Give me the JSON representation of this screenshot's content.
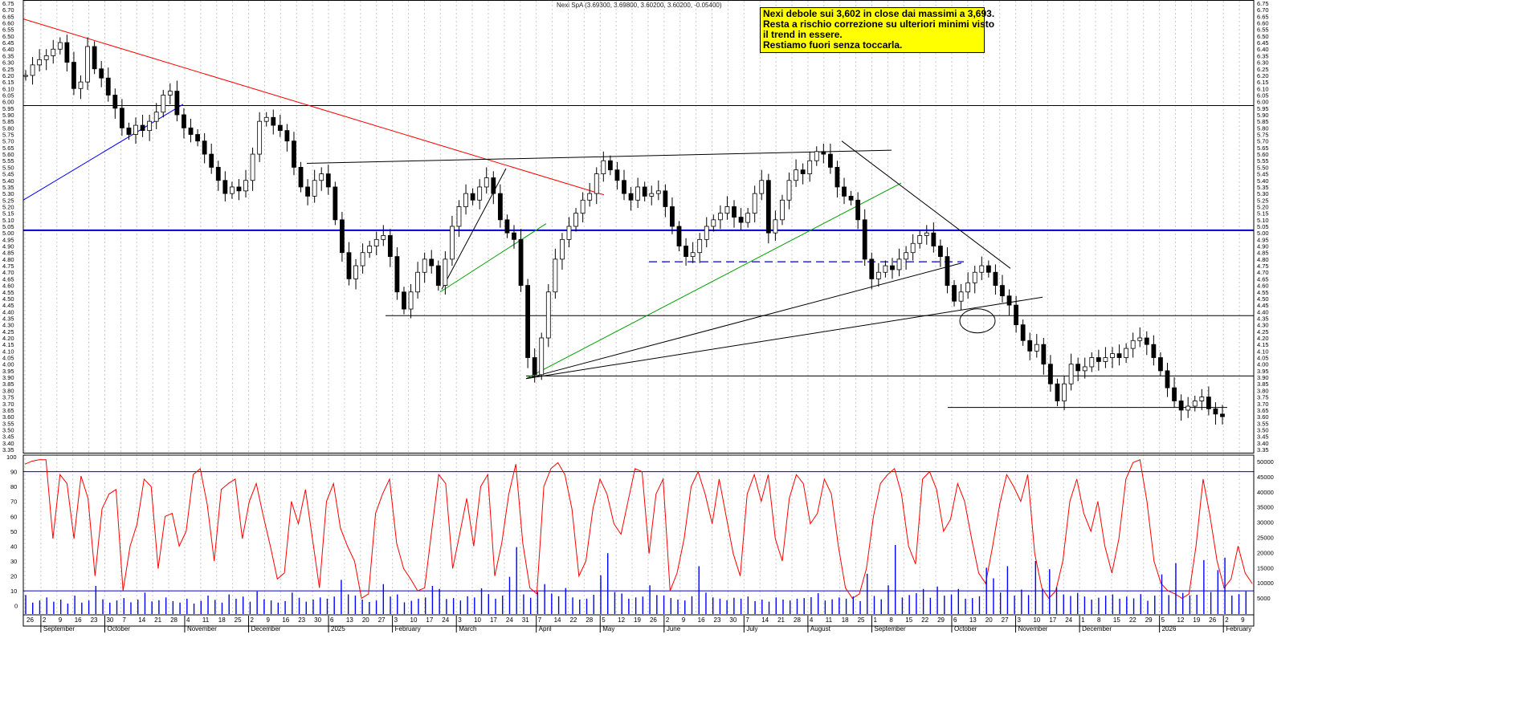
{
  "header": {
    "symbol": "Nexi SpA",
    "ohlc": "(3.69300, 3.69800, 3.60200, 3.60200, -0.05400)"
  },
  "annotation": {
    "lines": [
      "Nexi debole sui 3,602 in close dai massimi a 3,693.",
      "Resta a rischio correzione su ulteriori minimi visto",
      "il trend in essere.",
      "Restiamo fuori senza toccarla."
    ]
  },
  "colors": {
    "candle": "#000000",
    "resistance_red": "#ff0000",
    "trend_blue": "#0000ff",
    "trend_green": "#00a000",
    "horizontal_blue": "#0000cc",
    "oscillator": "#ff0000",
    "volume": "#0000ff",
    "annotation_bg": "#ffff00"
  },
  "chart_data": [
    {
      "type": "line",
      "title": "Nexi SpA (3.69300, 3.69800, 3.60200, 3.60200, -0.05400)",
      "ylim": [
        3.35,
        6.75
      ],
      "y_ticks": [
        3.35,
        3.4,
        3.45,
        3.5,
        3.55,
        3.6,
        3.65,
        3.7,
        3.75,
        3.8,
        3.85,
        3.9,
        3.95,
        4.0,
        4.05,
        4.1,
        4.15,
        4.2,
        4.25,
        4.3,
        4.35,
        4.4,
        4.45,
        4.5,
        4.55,
        4.6,
        4.65,
        4.7,
        4.75,
        4.8,
        4.85,
        4.9,
        4.95,
        5.0,
        5.05,
        5.1,
        5.15,
        5.2,
        5.25,
        5.3,
        5.35,
        5.4,
        5.45,
        5.5,
        5.55,
        5.6,
        5.65,
        5.7,
        5.75,
        5.8,
        5.85,
        5.9,
        5.95,
        6.0,
        6.05,
        6.1,
        6.15,
        6.2,
        6.25,
        6.3,
        6.35,
        6.4,
        6.45,
        6.5,
        6.55,
        6.6,
        6.65,
        6.7,
        6.75
      ],
      "x_day_labels": [
        "26",
        "2",
        "9",
        "16",
        "23",
        "30",
        "7",
        "14",
        "21",
        "28",
        "4",
        "11",
        "18",
        "25",
        "2",
        "9",
        "16",
        "23",
        "30",
        "6",
        "13",
        "20",
        "27",
        "3",
        "10",
        "17",
        "24",
        "3",
        "10",
        "17",
        "24",
        "31",
        "7",
        "14",
        "22",
        "28",
        "5",
        "12",
        "19",
        "26",
        "2",
        "9",
        "16",
        "23",
        "30",
        "7",
        "14",
        "21",
        "28",
        "4",
        "11",
        "18",
        "25",
        "1",
        "8",
        "15",
        "22",
        "29",
        "6",
        "13",
        "20",
        "27",
        "3",
        "10",
        "17",
        "24",
        "1",
        "8",
        "15",
        "22",
        "29",
        "5",
        "12",
        "19",
        "26",
        "2",
        "9"
      ],
      "x_month_labels": [
        "September",
        "October",
        "November",
        "December",
        "2025",
        "February",
        "March",
        "April",
        "May",
        "June",
        "July",
        "August",
        "September",
        "October",
        "November",
        "December",
        "2026",
        "February"
      ],
      "close_series": [
        6.2,
        6.28,
        6.32,
        6.35,
        6.4,
        6.45,
        6.3,
        6.1,
        6.15,
        6.42,
        6.25,
        6.18,
        6.05,
        5.95,
        5.8,
        5.75,
        5.82,
        5.78,
        5.85,
        5.92,
        6.05,
        6.08,
        5.9,
        5.8,
        5.75,
        5.7,
        5.6,
        5.5,
        5.4,
        5.3,
        5.35,
        5.32,
        5.4,
        5.6,
        5.85,
        5.88,
        5.82,
        5.78,
        5.7,
        5.5,
        5.35,
        5.28,
        5.4,
        5.45,
        5.35,
        5.1,
        4.85,
        4.65,
        4.75,
        4.85,
        4.9,
        4.95,
        4.98,
        4.82,
        4.55,
        4.42,
        4.55,
        4.7,
        4.8,
        4.75,
        4.6,
        4.8,
        5.05,
        5.2,
        5.3,
        5.25,
        5.35,
        5.42,
        5.3,
        5.1,
        5.0,
        4.95,
        4.6,
        4.05,
        3.92,
        4.2,
        4.55,
        4.8,
        4.95,
        5.05,
        5.15,
        5.25,
        5.3,
        5.45,
        5.55,
        5.48,
        5.4,
        5.3,
        5.25,
        5.35,
        5.28,
        5.3,
        5.32,
        5.2,
        5.05,
        4.9,
        4.82,
        4.85,
        4.95,
        5.05,
        5.1,
        5.15,
        5.2,
        5.12,
        5.08,
        5.15,
        5.3,
        5.4,
        5.0,
        5.1,
        5.25,
        5.4,
        5.48,
        5.45,
        5.55,
        5.62,
        5.6,
        5.5,
        5.35,
        5.28,
        5.25,
        5.1,
        4.8,
        4.65,
        4.7,
        4.75,
        4.72,
        4.8,
        4.85,
        4.92,
        4.98,
        5.0,
        4.9,
        4.82,
        4.6,
        4.48,
        4.55,
        4.62,
        4.7,
        4.75,
        4.7,
        4.6,
        4.52,
        4.45,
        4.3,
        4.18,
        4.1,
        4.15,
        4.0,
        3.85,
        3.72,
        3.85,
        4.0,
        3.95,
        3.98,
        4.05,
        4.02,
        4.05,
        4.08,
        4.05,
        4.12,
        4.18,
        4.2,
        4.15,
        4.05,
        3.95,
        3.82,
        3.72,
        3.65,
        3.68,
        3.72,
        3.75,
        3.66,
        3.62,
        3.6
      ],
      "overlays": {
        "horizontal_levels": [
          5.97,
          5.02,
          4.37,
          3.91,
          3.67
        ],
        "dashed_level": 4.78,
        "resistance_line": [
          6.63,
          5.29
        ],
        "channel_top_line": [
          5.53,
          5.63
        ]
      }
    },
    {
      "type": "line",
      "title": "",
      "ylim": [
        -5,
        100
      ],
      "y_ticks": [
        0,
        10,
        20,
        30,
        40,
        50,
        60,
        70,
        80,
        90,
        100
      ],
      "levels": [
        10,
        90
      ],
      "series": [
        {
          "values": [
            95,
            97,
            98,
            98,
            45,
            88,
            82,
            45,
            87,
            72,
            20,
            65,
            75,
            78,
            10,
            40,
            55,
            85,
            80,
            25,
            60,
            62,
            40,
            50,
            88,
            92,
            68,
            30,
            78,
            82,
            85,
            45,
            70,
            82,
            60,
            40,
            18,
            22,
            70,
            55,
            78,
            45,
            12,
            70,
            82,
            52,
            40,
            30,
            5,
            8,
            62,
            75,
            85,
            42,
            25,
            18,
            10,
            12,
            50,
            88,
            82,
            25,
            48,
            72,
            40,
            80,
            88,
            20,
            42,
            75,
            95,
            42,
            12,
            8,
            80,
            92,
            96,
            88,
            65,
            20,
            30,
            65,
            85,
            75,
            55,
            48,
            70,
            92,
            90,
            35,
            75,
            85,
            10,
            22,
            45,
            80,
            90,
            75,
            55,
            85,
            60,
            35,
            20,
            75,
            88,
            70,
            88,
            45,
            30,
            72,
            88,
            82,
            55,
            62,
            85,
            75,
            40,
            12,
            5,
            8,
            25,
            60,
            82,
            88,
            92,
            75,
            40,
            28,
            85,
            90,
            78,
            50,
            58,
            82,
            70,
            45,
            22,
            15,
            40,
            68,
            88,
            80,
            70,
            88,
            35,
            12,
            5,
            10,
            30,
            70,
            85,
            62,
            50,
            70,
            40,
            22,
            45,
            85,
            96,
            98,
            70,
            30,
            15,
            10,
            8,
            5,
            8,
            40,
            85,
            60,
            30,
            12,
            18,
            40,
            22,
            15
          ]
        }
      ]
    },
    {
      "type": "bar",
      "title": "",
      "ylim": [
        0,
        50000
      ],
      "y_ticks": [
        5000,
        10000,
        15000,
        20000,
        25000,
        30000,
        35000,
        40000,
        45000,
        50000
      ],
      "values": [
        6000,
        3500,
        4200,
        5200,
        3800,
        4500,
        3200,
        5800,
        3500,
        4200,
        9000,
        4600,
        3500,
        4200,
        5000,
        3600,
        4500,
        6800,
        3900,
        4300,
        5200,
        4000,
        3500,
        4800,
        3200,
        4100,
        5800,
        4400,
        3500,
        6200,
        4800,
        5500,
        3800,
        7200,
        4600,
        4200,
        3500,
        4000,
        6800,
        5100,
        3800,
        4500,
        5200,
        4800,
        5500,
        11000,
        6200,
        5800,
        4500,
        3700,
        4200,
        9600,
        5500,
        6200,
        3600,
        4100,
        4800,
        5200,
        9000,
        8000,
        4700,
        5000,
        4200,
        5600,
        5200,
        8200,
        6300,
        4800,
        5800,
        12000,
        21800,
        6200,
        5100,
        7000,
        9600,
        6500,
        5600,
        8300,
        5200,
        4500,
        4800,
        6100,
        12500,
        19800,
        7000,
        6500,
        4800,
        5200,
        5500,
        9200,
        6000,
        5800,
        5000,
        4500,
        4200,
        5600,
        15500,
        6800,
        5200,
        4800,
        4300,
        5100,
        4800,
        5500,
        4000,
        4500,
        3800,
        5200,
        4500,
        4200,
        4800,
        5000,
        5300,
        6600,
        4200,
        4600,
        5200,
        4800,
        5500,
        4000,
        13000,
        5700,
        4600,
        9200,
        22500,
        5200,
        6000,
        6600,
        8000,
        5100,
        8800,
        5800,
        6200,
        8000,
        4800,
        5000,
        5600,
        15000,
        11500,
        6800,
        15500,
        5800,
        7800,
        6000,
        17200,
        8000,
        14500,
        8600,
        6200,
        5700,
        6700,
        5500,
        4500,
        5100,
        5800,
        6200,
        4800,
        5500,
        4900,
        6300,
        4100,
        5800,
        12800,
        6000,
        16500,
        6700,
        5900,
        6100,
        17500,
        7000,
        14200,
        18300,
        5800,
        6300,
        7200
      ]
    }
  ]
}
